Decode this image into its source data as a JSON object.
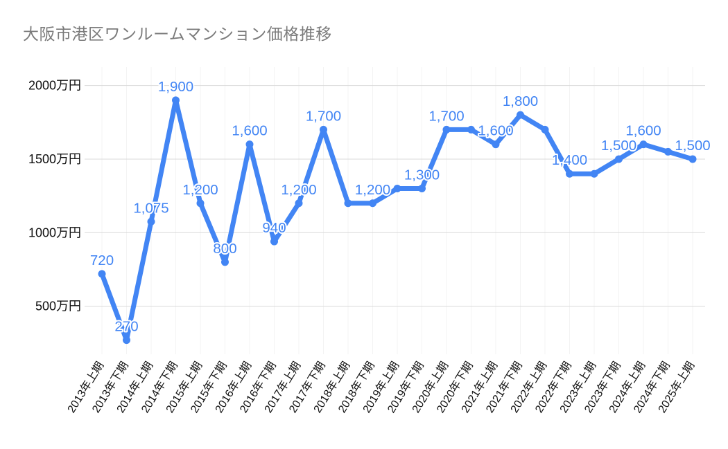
{
  "chart_data": {
    "type": "line",
    "title": "大阪市港区ワンルームマンション価格推移",
    "categories": [
      "2013年上期",
      "2013年下期",
      "2014年上期",
      "2014年下期",
      "2015年上期",
      "2015年下期",
      "2016年上期",
      "2016年下期",
      "2017年上期",
      "2017年下期",
      "2018年上期",
      "2018年下期",
      "2019年上期",
      "2019年下期",
      "2020年上期",
      "2020年下期",
      "2021年上期",
      "2021年下期",
      "2022年上期",
      "2022年下期",
      "2023年上期",
      "2023年下期",
      "2024年上期",
      "2024年下期",
      "2025年上期"
    ],
    "values": [
      720,
      270,
      1075,
      1900,
      1200,
      800,
      1600,
      940,
      1200,
      1700,
      1200,
      1200,
      1300,
      1300,
      1700,
      1700,
      1600,
      1800,
      1700,
      1400,
      1400,
      1500,
      1600,
      1550,
      1500
    ],
    "point_labels": [
      "720",
      "270",
      "1,075",
      "1,900",
      "1,200",
      "800",
      "1,600",
      "940",
      "1,200",
      "1,700",
      "",
      "1,200",
      "",
      "1,300",
      "1,700",
      "",
      "1,600",
      "1,800",
      "",
      "1,400",
      "",
      "1,500",
      "1,600",
      "",
      "1,500"
    ],
    "xlabel": "",
    "ylabel": "",
    "y_axis": {
      "tick_values": [
        500,
        1000,
        1500,
        2000
      ],
      "tick_labels": [
        "500万円",
        "1000万円",
        "1500万円",
        "2000万円"
      ],
      "unit": "万円",
      "range_estimate": [
        170,
        2120
      ]
    },
    "legend": "none",
    "grid": {
      "horizontal": true,
      "vertical": "faint"
    },
    "colors": {
      "series": "#4285f4",
      "data_label": "#4285f4",
      "title_text": "#7b7b7b",
      "axis_text": "#111111",
      "h_gridline": "#d9d9d9",
      "v_gridline": "#f3f3f3",
      "background": "#ffffff"
    }
  }
}
